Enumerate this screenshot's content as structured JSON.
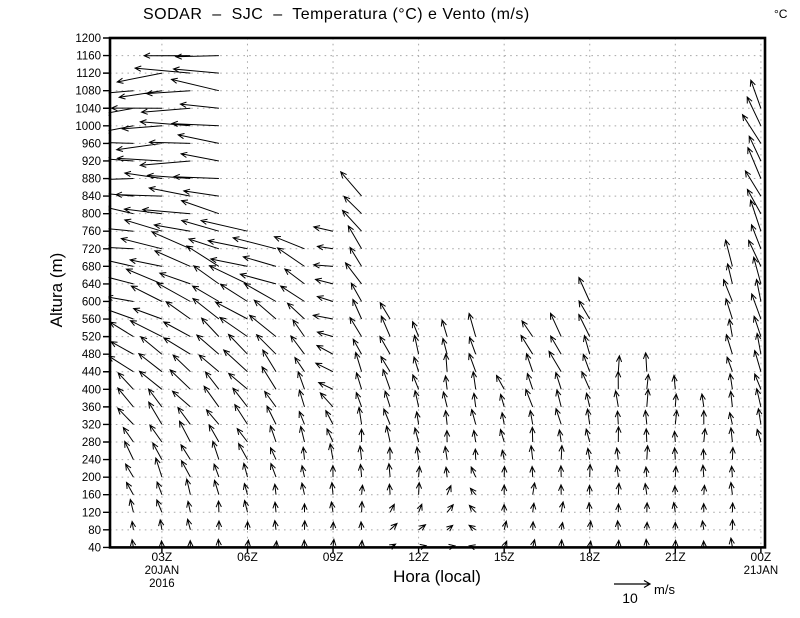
{
  "chart_data": {
    "type": "vector-wind-profile-time-series",
    "title": "SODAR  –  SJC  –  Temperatura (°C) e Vento (m/s)",
    "unit_label": "°C",
    "xlabel": "Hora (local)",
    "ylabel": "Altura (m)",
    "grid": "dotted, horizontal every 40 m, vertical every 3 h",
    "y_range_m": [
      40,
      1200
    ],
    "level_step_m": 40,
    "y_ticks": [
      40,
      80,
      120,
      160,
      200,
      240,
      280,
      320,
      360,
      400,
      440,
      480,
      520,
      560,
      600,
      640,
      680,
      720,
      760,
      800,
      840,
      880,
      920,
      960,
      1000,
      1040,
      1080,
      1120,
      1160,
      1200
    ],
    "x_ticks": [
      {
        "label": "03Z",
        "sub": "20JAN",
        "sub2": "2016"
      },
      {
        "label": "06Z"
      },
      {
        "label": "09Z"
      },
      {
        "label": "12Z"
      },
      {
        "label": "15Z"
      },
      {
        "label": "18Z"
      },
      {
        "label": "21Z"
      },
      {
        "label": "00Z",
        "sub": "21JAN"
      }
    ],
    "wind_legend": {
      "value_label": "10",
      "unit_label": "m/s",
      "speed_ms": 10
    },
    "profiles_note": "hourly wind profiles; ctrl = control points [height_m, pointing_dir_deg(0=E,90=N,180=W), speed_ms], linearly interpolated every 40 m from base_m to top_m",
    "profiles": [
      {
        "t_utc": 2,
        "base_m": 40,
        "top_m": 1080,
        "ctrl": [
          [
            40,
            92,
            2
          ],
          [
            160,
            112,
            4
          ],
          [
            400,
            140,
            7
          ],
          [
            680,
            170,
            9
          ],
          [
            1080,
            188,
            9
          ]
        ]
      },
      {
        "t_utc": 3,
        "base_m": 40,
        "top_m": 1120,
        "ctrl": [
          [
            40,
            95,
            2
          ],
          [
            200,
            115,
            5
          ],
          [
            440,
            140,
            8
          ],
          [
            760,
            172,
            11
          ],
          [
            1120,
            186,
            13
          ]
        ]
      },
      {
        "t_utc": 4,
        "base_m": 40,
        "top_m": 1160,
        "ctrl": [
          [
            40,
            92,
            2
          ],
          [
            200,
            118,
            5
          ],
          [
            480,
            142,
            8
          ],
          [
            800,
            172,
            12
          ],
          [
            1160,
            184,
            14
          ]
        ]
      },
      {
        "t_utc": 5,
        "base_m": 40,
        "top_m": 1160,
        "ctrl": [
          [
            40,
            90,
            2
          ],
          [
            240,
            115,
            5
          ],
          [
            520,
            140,
            8
          ],
          [
            840,
            168,
            11
          ],
          [
            1160,
            178,
            13
          ]
        ]
      },
      {
        "t_utc": 6,
        "base_m": 40,
        "top_m": 760,
        "ctrl": [
          [
            40,
            90,
            2
          ],
          [
            200,
            110,
            4
          ],
          [
            440,
            138,
            8
          ],
          [
            760,
            170,
            12
          ]
        ]
      },
      {
        "t_utc": 7,
        "base_m": 40,
        "top_m": 720,
        "ctrl": [
          [
            40,
            88,
            2
          ],
          [
            240,
            108,
            4
          ],
          [
            480,
            134,
            8
          ],
          [
            720,
            168,
            11
          ]
        ]
      },
      {
        "t_utc": 8,
        "base_m": 40,
        "top_m": 720,
        "ctrl": [
          [
            40,
            86,
            2
          ],
          [
            280,
            104,
            4
          ],
          [
            520,
            130,
            6
          ],
          [
            720,
            152,
            9
          ]
        ]
      },
      {
        "t_utc": 9,
        "base_m": 40,
        "top_m": 760,
        "ctrl": [
          [
            40,
            85,
            2
          ],
          [
            240,
            100,
            4
          ],
          [
            400,
            150,
            5
          ],
          [
            760,
            176,
            5
          ]
        ]
      },
      {
        "t_utc": 10,
        "base_m": 40,
        "top_m": 840,
        "ctrl": [
          [
            40,
            85,
            2
          ],
          [
            280,
            98,
            4
          ],
          [
            560,
            118,
            6
          ],
          [
            840,
            136,
            8
          ]
        ]
      },
      {
        "t_utc": 11,
        "base_m": 40,
        "top_m": 560,
        "ctrl": [
          [
            40,
            25,
            2
          ],
          [
            160,
            92,
            3
          ],
          [
            360,
            108,
            5
          ],
          [
            560,
            122,
            6
          ]
        ]
      },
      {
        "t_utc": 12,
        "base_m": 40,
        "top_m": 520,
        "ctrl": [
          [
            40,
            20,
            2
          ],
          [
            160,
            88,
            3
          ],
          [
            320,
            100,
            4
          ],
          [
            520,
            112,
            5
          ]
        ]
      },
      {
        "t_utc": 13,
        "base_m": 40,
        "top_m": 520,
        "ctrl": [
          [
            40,
            15,
            2
          ],
          [
            200,
            90,
            3
          ],
          [
            520,
            106,
            5
          ]
        ]
      },
      {
        "t_utc": 14,
        "base_m": 40,
        "top_m": 520,
        "ctrl": [
          [
            40,
            160,
            2
          ],
          [
            240,
            96,
            3
          ],
          [
            520,
            112,
            6
          ]
        ]
      },
      {
        "t_utc": 15,
        "base_m": 40,
        "top_m": 400,
        "ctrl": [
          [
            40,
            70,
            2
          ],
          [
            240,
            100,
            3
          ],
          [
            400,
            115,
            4
          ]
        ]
      },
      {
        "t_utc": 16,
        "base_m": 40,
        "top_m": 520,
        "ctrl": [
          [
            40,
            75,
            2
          ],
          [
            280,
            100,
            4
          ],
          [
            520,
            118,
            6
          ]
        ]
      },
      {
        "t_utc": 17,
        "base_m": 40,
        "top_m": 520,
        "ctrl": [
          [
            40,
            80,
            2
          ],
          [
            300,
            100,
            4
          ],
          [
            520,
            120,
            7
          ]
        ]
      },
      {
        "t_utc": 18,
        "base_m": 40,
        "top_m": 600,
        "ctrl": [
          [
            40,
            88,
            2
          ],
          [
            320,
            100,
            4
          ],
          [
            600,
            122,
            7
          ]
        ]
      },
      {
        "t_utc": 19,
        "base_m": 40,
        "top_m": 440,
        "ctrl": [
          [
            40,
            90,
            2
          ],
          [
            440,
            93,
            5
          ]
        ]
      },
      {
        "t_utc": 20,
        "base_m": 40,
        "top_m": 440,
        "ctrl": [
          [
            40,
            90,
            2
          ],
          [
            440,
            91,
            5
          ]
        ]
      },
      {
        "t_utc": 21,
        "base_m": 40,
        "top_m": 400,
        "ctrl": [
          [
            40,
            90,
            2
          ],
          [
            400,
            92,
            4
          ]
        ]
      },
      {
        "t_utc": 22,
        "base_m": 40,
        "top_m": 360,
        "ctrl": [
          [
            40,
            90,
            2
          ],
          [
            360,
            94,
            4
          ]
        ]
      },
      {
        "t_utc": 23,
        "base_m": 40,
        "top_m": 700,
        "ctrl": [
          [
            40,
            92,
            2.5
          ],
          [
            360,
            98,
            4
          ],
          [
            700,
            112,
            7
          ]
        ]
      },
      {
        "t_utc": 24,
        "base_m": 280,
        "top_m": 1040,
        "ctrl": [
          [
            280,
            100,
            4
          ],
          [
            480,
            106,
            6
          ],
          [
            720,
            112,
            8
          ],
          [
            1040,
            118,
            9
          ]
        ]
      }
    ],
    "colors": {
      "foreground": "#000000",
      "background": "#ffffff",
      "grid": "#a8a8a8"
    }
  }
}
